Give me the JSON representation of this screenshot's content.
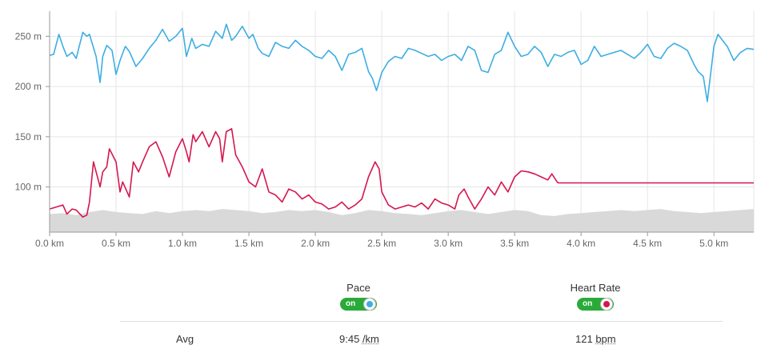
{
  "colors": {
    "pace": "#3daee3",
    "heart_rate": "#d6164f",
    "elevation": "#d9d9d9",
    "toggle_on": "#2aaa3a",
    "grid": "#e6e6e6"
  },
  "legend": {
    "pace_label": "Pace",
    "pace_toggle": "on",
    "hr_label": "Heart Rate",
    "hr_toggle": "on"
  },
  "summary": {
    "row_label": "Avg",
    "pace_value": "9:45",
    "pace_unit": "/km",
    "hr_value": "121",
    "hr_unit": "bpm"
  },
  "chart_data": {
    "type": "line",
    "x_unit": "km",
    "xlim": [
      0,
      5.3
    ],
    "ylim": [
      55,
      275
    ],
    "y_ticks": [
      100,
      150,
      200,
      250
    ],
    "y_tick_labels": [
      "100 m",
      "150 m",
      "200 m",
      "250 m"
    ],
    "x_ticks": [
      0,
      0.5,
      1,
      1.5,
      2,
      2.5,
      3,
      3.5,
      4,
      4.5,
      5
    ],
    "x_tick_labels": [
      "0.0 km",
      "0.5 km",
      "1.0 km",
      "1.5 km",
      "2.0 km",
      "2.5 km",
      "3.0 km",
      "3.5 km",
      "4.0 km",
      "4.5 km",
      "5.0 km"
    ],
    "grid": true,
    "series": [
      {
        "key": "pace",
        "x": [
          0.0,
          0.03,
          0.07,
          0.1,
          0.13,
          0.17,
          0.2,
          0.25,
          0.28,
          0.3,
          0.35,
          0.38,
          0.4,
          0.43,
          0.47,
          0.5,
          0.53,
          0.57,
          0.6,
          0.65,
          0.7,
          0.75,
          0.8,
          0.85,
          0.9,
          0.95,
          1.0,
          1.03,
          1.07,
          1.1,
          1.15,
          1.2,
          1.25,
          1.3,
          1.33,
          1.37,
          1.4,
          1.45,
          1.5,
          1.53,
          1.57,
          1.6,
          1.65,
          1.7,
          1.75,
          1.8,
          1.85,
          1.9,
          1.95,
          2.0,
          2.05,
          2.1,
          2.15,
          2.2,
          2.25,
          2.3,
          2.35,
          2.4,
          2.43,
          2.46,
          2.5,
          2.55,
          2.6,
          2.65,
          2.7,
          2.75,
          2.8,
          2.85,
          2.9,
          2.95,
          3.0,
          3.05,
          3.1,
          3.15,
          3.2,
          3.25,
          3.3,
          3.35,
          3.4,
          3.45,
          3.5,
          3.55,
          3.6,
          3.65,
          3.7,
          3.75,
          3.8,
          3.85,
          3.9,
          3.95,
          4.0,
          4.05,
          4.1,
          4.15,
          4.2,
          4.25,
          4.3,
          4.35,
          4.4,
          4.45,
          4.5,
          4.55,
          4.6,
          4.65,
          4.7,
          4.75,
          4.8,
          4.85,
          4.88,
          4.92,
          4.95,
          5.0,
          5.03,
          5.07,
          5.1,
          5.15,
          5.2,
          5.25,
          5.3
        ],
        "y": [
          231,
          232,
          252,
          240,
          230,
          234,
          228,
          254,
          250,
          252,
          230,
          204,
          230,
          241,
          236,
          212,
          226,
          240,
          235,
          220,
          228,
          238,
          246,
          257,
          245,
          250,
          258,
          230,
          248,
          238,
          242,
          240,
          255,
          248,
          262,
          246,
          250,
          260,
          248,
          252,
          238,
          233,
          230,
          244,
          240,
          238,
          246,
          240,
          236,
          230,
          228,
          236,
          230,
          216,
          232,
          234,
          238,
          215,
          208,
          196,
          214,
          225,
          230,
          228,
          238,
          236,
          233,
          230,
          232,
          226,
          230,
          232,
          226,
          240,
          236,
          216,
          214,
          232,
          236,
          254,
          240,
          230,
          232,
          240,
          234,
          220,
          232,
          230,
          234,
          236,
          222,
          226,
          240,
          230,
          232,
          234,
          236,
          232,
          228,
          234,
          242,
          230,
          228,
          238,
          243,
          240,
          236,
          222,
          215,
          210,
          185,
          240,
          252,
          245,
          240,
          226,
          234,
          238,
          237
        ]
      },
      {
        "key": "heart_rate",
        "x": [
          0.0,
          0.05,
          0.1,
          0.13,
          0.17,
          0.2,
          0.25,
          0.28,
          0.3,
          0.33,
          0.38,
          0.4,
          0.43,
          0.45,
          0.5,
          0.53,
          0.55,
          0.6,
          0.63,
          0.67,
          0.7,
          0.75,
          0.8,
          0.85,
          0.9,
          0.95,
          1.0,
          1.03,
          1.05,
          1.08,
          1.1,
          1.15,
          1.2,
          1.25,
          1.28,
          1.3,
          1.33,
          1.37,
          1.4,
          1.45,
          1.5,
          1.55,
          1.6,
          1.65,
          1.7,
          1.75,
          1.8,
          1.85,
          1.9,
          1.95,
          2.0,
          2.05,
          2.1,
          2.15,
          2.2,
          2.25,
          2.3,
          2.35,
          2.4,
          2.45,
          2.48,
          2.5,
          2.55,
          2.6,
          2.65,
          2.7,
          2.75,
          2.8,
          2.85,
          2.9,
          2.95,
          3.0,
          3.05,
          3.08,
          3.12,
          3.15,
          3.2,
          3.25,
          3.3,
          3.35,
          3.4,
          3.45,
          3.5,
          3.55,
          3.6,
          3.65,
          3.7,
          3.75,
          3.78,
          3.82,
          3.83,
          4.0,
          4.5,
          5.0,
          5.3
        ],
        "y": [
          78,
          80,
          82,
          73,
          78,
          77,
          70,
          72,
          85,
          125,
          100,
          115,
          120,
          138,
          125,
          95,
          105,
          90,
          125,
          115,
          125,
          140,
          145,
          130,
          110,
          135,
          148,
          135,
          125,
          152,
          145,
          155,
          140,
          155,
          148,
          125,
          155,
          158,
          132,
          120,
          105,
          100,
          118,
          95,
          92,
          85,
          98,
          95,
          88,
          92,
          85,
          83,
          78,
          80,
          85,
          78,
          82,
          88,
          110,
          125,
          118,
          95,
          82,
          78,
          80,
          82,
          80,
          84,
          78,
          88,
          84,
          82,
          78,
          92,
          98,
          90,
          78,
          88,
          100,
          92,
          105,
          95,
          110,
          116,
          115,
          113,
          110,
          107,
          113,
          105,
          104,
          104,
          104,
          104,
          104
        ]
      },
      {
        "key": "elevation",
        "x": [
          0.0,
          0.1,
          0.2,
          0.3,
          0.4,
          0.5,
          0.6,
          0.7,
          0.8,
          0.9,
          1.0,
          1.1,
          1.2,
          1.3,
          1.4,
          1.5,
          1.6,
          1.7,
          1.8,
          1.9,
          2.0,
          2.1,
          2.2,
          2.3,
          2.4,
          2.5,
          2.6,
          2.7,
          2.8,
          2.9,
          3.0,
          3.1,
          3.2,
          3.3,
          3.4,
          3.5,
          3.6,
          3.7,
          3.8,
          3.9,
          4.0,
          4.1,
          4.2,
          4.3,
          4.4,
          4.5,
          4.6,
          4.7,
          4.8,
          4.9,
          5.0,
          5.1,
          5.2,
          5.3
        ],
        "y": [
          73,
          74,
          72,
          75,
          77,
          75,
          74,
          73,
          76,
          74,
          76,
          77,
          76,
          78,
          77,
          76,
          74,
          75,
          77,
          76,
          77,
          75,
          72,
          74,
          77,
          76,
          74,
          73,
          72,
          74,
          76,
          77,
          75,
          73,
          75,
          77,
          76,
          72,
          71,
          73,
          74,
          75,
          76,
          77,
          76,
          77,
          78,
          76,
          75,
          74,
          75,
          76,
          77,
          78
        ]
      }
    ]
  }
}
